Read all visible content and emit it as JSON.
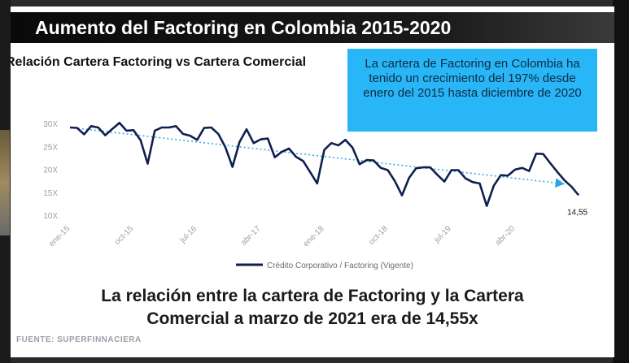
{
  "header": {
    "title": "Aumento del Factoring en Colombia 2015-2020"
  },
  "chart_title": "Relación Cartera Factoring vs Cartera Comercial",
  "callout": {
    "text": "La cartera de Factoring en Colombia ha tenido un crecimiento del 197% desde enero del 2015 hasta diciembre de 2020",
    "color": "#29b6f6"
  },
  "conclusion": {
    "line1": "La relación entre la cartera de Factoring y la Cartera",
    "line2": "Comercial a marzo de 2021 era de 14,55x"
  },
  "source": "FUENTE: SUPERFINNACIERA",
  "chart_data": {
    "type": "line",
    "title": "Relación Cartera Factoring vs Cartera Comercial",
    "y_ticks": [
      "10X",
      "15X",
      "20X",
      "25X",
      "30X"
    ],
    "ylim": [
      10,
      30
    ],
    "x_ticks": [
      {
        "label": "ene-15",
        "index": 0
      },
      {
        "label": "oct-15",
        "index": 9
      },
      {
        "label": "jul-16",
        "index": 18
      },
      {
        "label": "abr-17",
        "index": 27
      },
      {
        "label": "ene-18",
        "index": 36
      },
      {
        "label": "oct-18",
        "index": 45
      },
      {
        "label": "jul-19",
        "index": 54
      },
      {
        "label": "abr-20",
        "index": 63
      }
    ],
    "series": [
      {
        "name": "Crédito Corporativo / Factoring (Vigente)",
        "color": "#0f2050",
        "values": [
          29.3,
          29.2,
          27.8,
          29.6,
          29.3,
          27.6,
          29.0,
          30.3,
          28.6,
          28.7,
          26.5,
          21.4,
          28.6,
          29.3,
          29.3,
          29.6,
          27.9,
          27.5,
          26.6,
          29.2,
          29.3,
          27.9,
          25.0,
          20.7,
          26.1,
          28.9,
          25.9,
          26.7,
          26.9,
          22.8,
          24.0,
          24.7,
          22.9,
          22.0,
          19.6,
          17.1,
          24.4,
          25.9,
          25.4,
          26.6,
          24.9,
          21.3,
          22.2,
          22.1,
          20.5,
          20.0,
          17.6,
          14.5,
          18.3,
          20.4,
          20.6,
          20.6,
          19.0,
          17.5,
          20.0,
          20.0,
          18.2,
          17.4,
          17.1,
          12.2,
          16.6,
          18.9,
          18.8,
          20.1,
          20.5,
          19.8,
          23.6,
          23.5,
          21.5,
          19.6,
          17.8,
          16.4,
          14.55
        ]
      }
    ],
    "trend": {
      "start": 29.3,
      "end": 17.0,
      "color": "#3da9de"
    },
    "last_value_label": "14,55"
  }
}
